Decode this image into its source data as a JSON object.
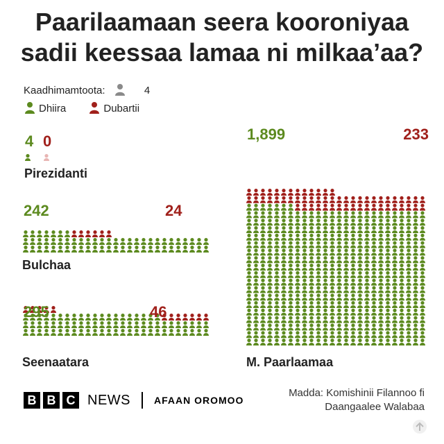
{
  "header": {
    "title_line1": "Paarilaamaan seera kooroniyaa",
    "title_line2": "sadii keessaa lamaa ni milkaa’aa?"
  },
  "legend": {
    "scale_label": "Kaadhimamtoota:",
    "scale_value": "4",
    "male_label": "Dhiira",
    "female_label": "Dubartii"
  },
  "colors": {
    "male": "#5c8a1f",
    "female": "#a0201b",
    "female_faded": "#e8b5b3",
    "scale_icon": "#8a8a8a"
  },
  "chart_data": {
    "type": "pictogram",
    "title": "Paarilaamaan seera kooroniyaa sadii keessaa lamaa ni milkaa’aa?",
    "unit_per_icon": 4,
    "series_names": [
      "Dhiira",
      "Dubartii"
    ],
    "groups": [
      {
        "name": "Pirezidanti",
        "male": 4,
        "female": 0,
        "male_label": "4",
        "female_label": "0"
      },
      {
        "name": "Bulchaa",
        "male": 242,
        "female": 24,
        "male_label": "242",
        "female_label": "24"
      },
      {
        "name": "Seenaatara",
        "male": 295,
        "female": 46,
        "male_label": "295",
        "female_label": "46"
      },
      {
        "name": "M. Paarlaamaa",
        "male": 1899,
        "female": 233,
        "male_label": "1,899",
        "female_label": "233"
      }
    ]
  },
  "footer": {
    "brand_letters": [
      "B",
      "B",
      "C"
    ],
    "news": "NEWS",
    "service": "AFAAN OROMOO",
    "source_line1": "Madda: Komishinii Filannoo fi",
    "source_line2": "Daangaalee Walabaa"
  }
}
